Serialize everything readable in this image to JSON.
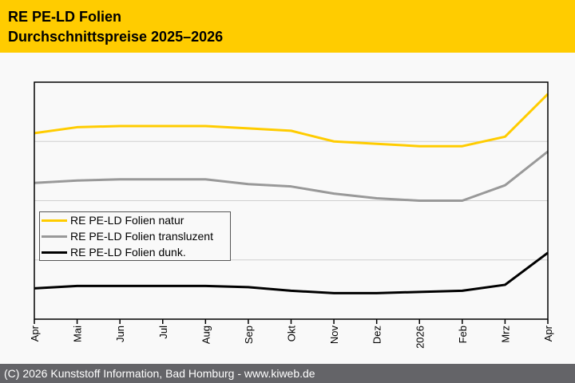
{
  "header": {
    "title_line1": "RE PE-LD Folien",
    "title_line2": "Durchschnittspreise 2025–2026"
  },
  "footer": {
    "text": "(C) 2026 Kunststoff Information, Bad Homburg - www.kiweb.de"
  },
  "colors": {
    "header_bg": "#ffcc00",
    "footer_bg": "#646468",
    "natur": "#ffcc00",
    "transluzent": "#999999",
    "dunkel": "#000000"
  },
  "chart_data": {
    "type": "line",
    "title": "RE PE-LD Folien Durchschnittspreise 2025–2026",
    "xlabel": "",
    "ylabel": "",
    "y_unit_note": "No y-axis tick labels shown; values in relative gridline units (0 = axis bottom, 4 = axis top)",
    "ylim": [
      0,
      4
    ],
    "y_gridlines": [
      1,
      2,
      3
    ],
    "grid": true,
    "legend_position": "middle-left",
    "categories": [
      "Apr",
      "Mai",
      "Jun",
      "Jul",
      "Aug",
      "Sep",
      "Okt",
      "Nov",
      "Dez",
      "2026",
      "Feb",
      "Mrz",
      "Apr"
    ],
    "series": [
      {
        "name": "RE PE-LD Folien natur",
        "color": "#ffcc00",
        "values": [
          3.14,
          3.24,
          3.26,
          3.26,
          3.26,
          3.22,
          3.18,
          3.0,
          2.96,
          2.92,
          2.92,
          3.08,
          3.8
        ]
      },
      {
        "name": "RE PE-LD Folien transluzent",
        "color": "#999999",
        "values": [
          2.3,
          2.34,
          2.36,
          2.36,
          2.36,
          2.28,
          2.24,
          2.12,
          2.04,
          2.0,
          2.0,
          2.26,
          2.83
        ]
      },
      {
        "name": "RE PE-LD Folien dunk.",
        "color": "#000000",
        "values": [
          0.52,
          0.56,
          0.56,
          0.56,
          0.56,
          0.54,
          0.48,
          0.44,
          0.44,
          0.46,
          0.48,
          0.58,
          1.12
        ]
      }
    ]
  }
}
